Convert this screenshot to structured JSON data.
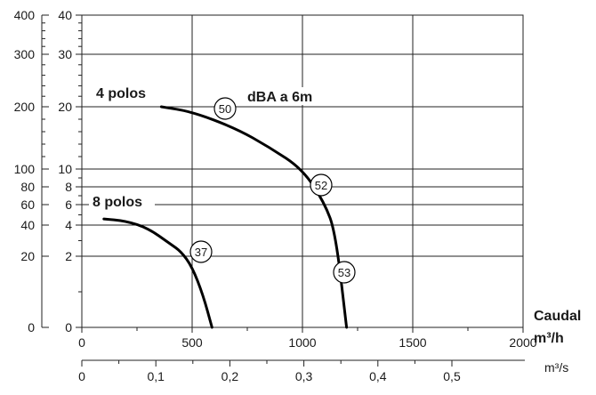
{
  "chart_data": {
    "type": "line",
    "title": "",
    "annotation": "dBA a 6m",
    "x_axis": {
      "label": "Caudal",
      "unit_html": "m³/h",
      "range": [
        0,
        2000
      ],
      "ticks": [
        0,
        500,
        1000,
        1500,
        2000
      ],
      "tick_labels": [
        "0",
        "500",
        "1000",
        "1500",
        "2000"
      ]
    },
    "x2_axis": {
      "unit": "m³/s",
      "ticks": [
        0,
        0.1,
        0.2,
        0.3,
        0.4,
        0.5
      ],
      "tick_labels": [
        "0",
        "0,1",
        "0,2",
        "0,3",
        "0,4",
        "0,5"
      ]
    },
    "y_axis_inner": {
      "ticks": [
        0,
        2,
        4,
        6,
        8,
        10,
        20,
        30,
        40
      ],
      "tick_labels": [
        "0",
        "2",
        "4",
        "6",
        "8",
        "10",
        "20",
        "30",
        "40"
      ]
    },
    "y_axis_outer": {
      "ticks": [
        0,
        20,
        40,
        60,
        80,
        100,
        200,
        300,
        400
      ],
      "tick_labels": [
        "0",
        "20",
        "40",
        "60",
        "80",
        "100",
        "200",
        "300",
        "400"
      ]
    },
    "grid": true,
    "series": [
      {
        "name": "4 polos",
        "x": [
          360,
          500,
          700,
          850,
          1000,
          1100,
          1150,
          1200
        ],
        "y": [
          20,
          19.2,
          16.5,
          13.5,
          10,
          6.2,
          3.5,
          0
        ]
      },
      {
        "name": "8 polos",
        "x": [
          100,
          200,
          300,
          400,
          450,
          500,
          550,
          590
        ],
        "y": [
          4.6,
          4.4,
          3.8,
          2.8,
          2.3,
          1.7,
          0.9,
          0
        ]
      }
    ],
    "markers": [
      {
        "label": "50",
        "x": 680,
        "y": 19.4
      },
      {
        "label": "52",
        "x": 1130,
        "y": 8.3
      },
      {
        "label": "53",
        "x": 1250,
        "y": 1.3
      },
      {
        "label": "37",
        "x": 560,
        "y": 2.0
      }
    ]
  }
}
